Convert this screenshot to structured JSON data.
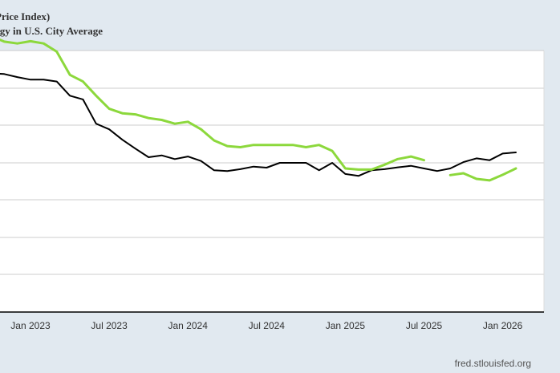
{
  "chart_data": {
    "type": "line",
    "title_lines": [
      "Price Index)",
      "rgy in U.S. City Average"
    ],
    "x_tick_labels": [
      "Jan 2023",
      "Jul 2023",
      "Jan 2024",
      "Jul 2024",
      "Jan 2025",
      "Jul 2025",
      "Jan 2026"
    ],
    "x_tick_dates": [
      "2023-01",
      "2023-07",
      "2024-01",
      "2024-07",
      "2025-01",
      "2025-07",
      "2026-01"
    ],
    "grid": true,
    "series": [
      {
        "color": "#000000",
        "points": [
          [
            "2022-08",
            5.2
          ],
          [
            "2022-09",
            4.75
          ],
          [
            "2022-10",
            4.4
          ],
          [
            "2022-11",
            4.38
          ],
          [
            "2022-12",
            4.3
          ],
          [
            "2023-01",
            4.23
          ],
          [
            "2023-02",
            4.23
          ],
          [
            "2023-03",
            4.18
          ],
          [
            "2023-04",
            3.8
          ],
          [
            "2023-05",
            3.7
          ],
          [
            "2023-06",
            3.05
          ],
          [
            "2023-07",
            2.9
          ],
          [
            "2023-08",
            2.62
          ],
          [
            "2023-09",
            2.38
          ],
          [
            "2023-10",
            2.15
          ],
          [
            "2023-11",
            2.2
          ],
          [
            "2023-12",
            2.1
          ],
          [
            "2024-01",
            2.17
          ],
          [
            "2024-02",
            2.05
          ],
          [
            "2024-03",
            1.8
          ],
          [
            "2024-04",
            1.78
          ],
          [
            "2024-05",
            1.83
          ],
          [
            "2024-06",
            1.9
          ],
          [
            "2024-07",
            1.87
          ],
          [
            "2024-08",
            2.0
          ],
          [
            "2024-09",
            2.0
          ],
          [
            "2024-10",
            2.0
          ],
          [
            "2024-11",
            1.8
          ],
          [
            "2024-12",
            2.0
          ],
          [
            "2025-01",
            1.7
          ],
          [
            "2025-02",
            1.65
          ],
          [
            "2025-03",
            1.8
          ],
          [
            "2025-04",
            1.83
          ],
          [
            "2025-05",
            1.88
          ],
          [
            "2025-06",
            1.92
          ],
          [
            "2025-07",
            1.85
          ],
          [
            "2025-08",
            1.78
          ],
          [
            "2025-09",
            1.85
          ],
          [
            "2025-10",
            2.02
          ],
          [
            "2025-11",
            2.12
          ],
          [
            "2025-12",
            2.07
          ],
          [
            "2026-01",
            2.25
          ],
          [
            "2026-02",
            2.28
          ]
        ]
      },
      {
        "color": "#8cd83c",
        "points": [
          [
            "2022-08",
            6.2
          ],
          [
            "2022-09",
            5.75
          ],
          [
            "2022-10",
            5.4
          ],
          [
            "2022-11",
            5.25
          ],
          [
            "2022-12",
            5.2
          ],
          [
            "2023-01",
            5.26
          ],
          [
            "2023-02",
            5.2
          ],
          [
            "2023-03",
            4.98
          ],
          [
            "2023-04",
            4.36
          ],
          [
            "2023-05",
            4.18
          ],
          [
            "2023-06",
            3.8
          ],
          [
            "2023-07",
            3.45
          ],
          [
            "2023-08",
            3.33
          ],
          [
            "2023-09",
            3.3
          ],
          [
            "2023-10",
            3.2
          ],
          [
            "2023-11",
            3.15
          ],
          [
            "2023-12",
            3.05
          ],
          [
            "2024-01",
            3.1
          ],
          [
            "2024-02",
            2.9
          ],
          [
            "2024-03",
            2.6
          ],
          [
            "2024-04",
            2.45
          ],
          [
            "2024-05",
            2.42
          ],
          [
            "2024-06",
            2.48
          ],
          [
            "2024-07",
            2.48
          ],
          [
            "2024-08",
            2.48
          ],
          [
            "2024-09",
            2.48
          ],
          [
            "2024-10",
            2.42
          ],
          [
            "2024-11",
            2.48
          ],
          [
            "2024-12",
            2.32
          ],
          [
            "2025-01",
            1.85
          ],
          [
            "2025-02",
            1.82
          ],
          [
            "2025-03",
            1.82
          ],
          [
            "2025-04",
            1.95
          ],
          [
            "2025-05",
            2.1
          ],
          [
            "2025-06",
            2.17
          ],
          [
            "2025-07",
            2.07
          ],
          null,
          [
            "2025-09",
            1.67
          ],
          [
            "2025-10",
            1.72
          ],
          [
            "2025-11",
            1.57
          ],
          [
            "2025-12",
            1.53
          ],
          [
            "2026-01",
            1.68
          ],
          [
            "2026-02",
            1.85
          ]
        ]
      }
    ]
  },
  "source": "fred.stlouisfed.org"
}
